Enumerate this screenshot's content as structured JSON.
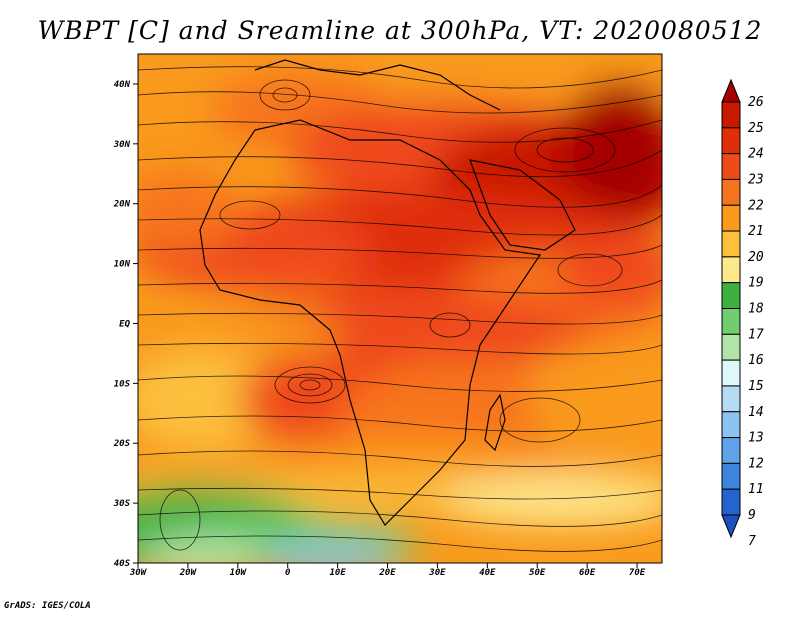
{
  "title": "WBPT [C] and Sreamline at 300hPa, VT: 2020080512",
  "footer": "GrADS: IGES/COLA",
  "map": {
    "variable": "WBPT",
    "units": "C",
    "level": "300hPa",
    "valid_time": "2020080512",
    "lon_range": [
      -30,
      75
    ],
    "lat_range": [
      -40,
      45
    ],
    "lat_ticks": [
      {
        "value": 40,
        "label": "40N"
      },
      {
        "value": 30,
        "label": "30N"
      },
      {
        "value": 20,
        "label": "20N"
      },
      {
        "value": 10,
        "label": "10N"
      },
      {
        "value": 0,
        "label": "EQ"
      },
      {
        "value": -10,
        "label": "10S"
      },
      {
        "value": -20,
        "label": "20S"
      },
      {
        "value": -30,
        "label": "30S"
      },
      {
        "value": -40,
        "label": "40S"
      }
    ],
    "lon_ticks": [
      {
        "value": -30,
        "label": "30W"
      },
      {
        "value": -20,
        "label": "20W"
      },
      {
        "value": -10,
        "label": "10W"
      },
      {
        "value": 0,
        "label": "0"
      },
      {
        "value": 10,
        "label": "10E"
      },
      {
        "value": 20,
        "label": "20E"
      },
      {
        "value": 30,
        "label": "30E"
      },
      {
        "value": 40,
        "label": "40E"
      },
      {
        "value": 50,
        "label": "50E"
      },
      {
        "value": 60,
        "label": "60E"
      },
      {
        "value": 70,
        "label": "70E"
      }
    ]
  },
  "colorbar": {
    "levels": [
      {
        "label": "26",
        "color": "#a50000"
      },
      {
        "label": "25",
        "color": "#c81800"
      },
      {
        "label": "24",
        "color": "#e02d0a"
      },
      {
        "label": "23",
        "color": "#ef4a1a"
      },
      {
        "label": "22",
        "color": "#f7741e"
      },
      {
        "label": "21",
        "color": "#f99a1c"
      },
      {
        "label": "20",
        "color": "#fcc03c"
      },
      {
        "label": "19",
        "color": "#fde88c"
      },
      {
        "label": "18",
        "color": "#3fb03f"
      },
      {
        "label": "17",
        "color": "#70cd70"
      },
      {
        "label": "16",
        "color": "#b0e4a8"
      },
      {
        "label": "15",
        "color": "#e0f7fa"
      },
      {
        "label": "14",
        "color": "#b4dcf5"
      },
      {
        "label": "13",
        "color": "#8cc3f0"
      },
      {
        "label": "12",
        "color": "#5fa3e8"
      },
      {
        "label": "11",
        "color": "#3c84de"
      },
      {
        "label": "9",
        "color": "#2464cc"
      },
      {
        "label": "7",
        "color": "#1a50c0"
      }
    ]
  }
}
